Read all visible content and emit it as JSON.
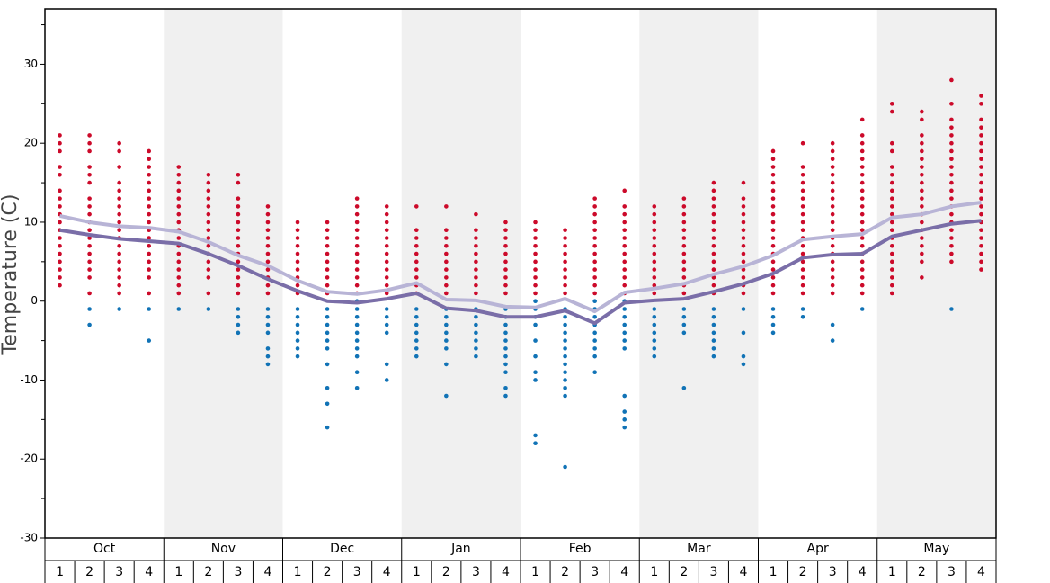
{
  "chart_data": {
    "type": "scatter",
    "y_label": "Temperature (C)",
    "ylim": [
      -30,
      37
    ],
    "yticks": [
      -30,
      -20,
      -10,
      0,
      10,
      20,
      30
    ],
    "minor_yticks": [
      -25,
      -15,
      -5,
      5,
      15,
      25,
      35
    ],
    "warm_color": "#cc0a2a",
    "cold_color": "#1173b6",
    "band_color": "#f0f0f0",
    "months": [
      {
        "name": "Oct",
        "weeks": [
          "1",
          "2",
          "3",
          "4"
        ],
        "dots": [
          [
            21,
            20,
            19,
            17,
            16,
            14,
            13,
            12,
            11,
            10,
            9,
            8,
            7,
            6,
            5,
            4,
            3,
            2
          ],
          [
            21,
            20,
            19,
            17,
            16,
            15,
            13,
            12,
            11,
            10,
            9,
            8,
            7,
            6,
            5,
            4,
            3,
            1,
            -1,
            -3
          ],
          [
            20,
            19,
            17,
            15,
            14,
            13,
            12,
            11,
            10,
            9,
            8,
            7,
            6,
            5,
            4,
            3,
            2,
            1,
            -1
          ],
          [
            19,
            18,
            17,
            16,
            15,
            14,
            13,
            12,
            11,
            10,
            9,
            8,
            7,
            6,
            5,
            4,
            3,
            1,
            -1,
            -5
          ]
        ]
      },
      {
        "name": "Nov",
        "weeks": [
          "1",
          "2",
          "3",
          "4"
        ],
        "dots": [
          [
            17,
            16,
            15,
            14,
            13,
            12,
            11,
            10,
            9,
            8,
            7,
            6,
            5,
            4,
            3,
            2,
            1,
            -1
          ],
          [
            16,
            15,
            14,
            13,
            12,
            11,
            10,
            9,
            8,
            7,
            6,
            5,
            4,
            3,
            1,
            -1
          ],
          [
            16,
            15,
            13,
            12,
            11,
            10,
            9,
            8,
            7,
            6,
            5,
            4,
            3,
            2,
            1,
            -1,
            -2,
            -3,
            -4
          ],
          [
            12,
            11,
            10,
            9,
            8,
            7,
            6,
            5,
            4,
            3,
            2,
            1,
            -1,
            -2,
            -3,
            -4,
            -6,
            -7,
            -8
          ]
        ]
      },
      {
        "name": "Dec",
        "weeks": [
          "1",
          "2",
          "3",
          "4"
        ],
        "dots": [
          [
            10,
            9,
            8,
            7,
            6,
            5,
            4,
            3,
            2,
            1,
            -1,
            -2,
            -3,
            -4,
            -5,
            -6,
            -7
          ],
          [
            10,
            9,
            8,
            7,
            6,
            5,
            4,
            3,
            2,
            1,
            -1,
            -2,
            -3,
            -4,
            -5,
            -6,
            -8,
            -11,
            -13,
            -16
          ],
          [
            13,
            12,
            11,
            10,
            9,
            8,
            7,
            6,
            5,
            4,
            3,
            2,
            1,
            0,
            -1,
            -2,
            -3,
            -4,
            -5,
            -6,
            -7,
            -9,
            -11
          ],
          [
            12,
            11,
            10,
            9,
            8,
            7,
            6,
            5,
            4,
            3,
            2,
            1,
            -1,
            -2,
            -3,
            -4,
            -8,
            -10
          ]
        ]
      },
      {
        "name": "Jan",
        "weeks": [
          "1",
          "2",
          "3",
          "4"
        ],
        "dots": [
          [
            12,
            9,
            8,
            7,
            6,
            5,
            4,
            3,
            2,
            1,
            -1,
            -2,
            -3,
            -4,
            -5,
            -6,
            -7
          ],
          [
            12,
            9,
            8,
            7,
            6,
            5,
            4,
            3,
            2,
            1,
            -1,
            -2,
            -3,
            -4,
            -5,
            -6,
            -8,
            -12
          ],
          [
            11,
            9,
            8,
            7,
            6,
            5,
            4,
            3,
            2,
            1,
            -1,
            -2,
            -3,
            -4,
            -5,
            -6,
            -7
          ],
          [
            10,
            9,
            8,
            7,
            6,
            5,
            4,
            3,
            2,
            1,
            -1,
            -2,
            -3,
            -4,
            -5,
            -6,
            -7,
            -8,
            -9,
            -11,
            -12
          ]
        ]
      },
      {
        "name": "Feb",
        "weeks": [
          "1",
          "2",
          "3",
          "4"
        ],
        "dots": [
          [
            10,
            9,
            8,
            7,
            6,
            5,
            4,
            3,
            2,
            1,
            0,
            -1,
            -2,
            -3,
            -5,
            -7,
            -9,
            -10,
            -17,
            -18
          ],
          [
            9,
            8,
            7,
            6,
            5,
            4,
            3,
            2,
            1,
            -1,
            -2,
            -3,
            -4,
            -5,
            -6,
            -7,
            -8,
            -9,
            -10,
            -11,
            -12,
            -21
          ],
          [
            13,
            12,
            11,
            10,
            9,
            8,
            7,
            6,
            5,
            4,
            3,
            2,
            1,
            0,
            -1,
            -2,
            -3,
            -4,
            -5,
            -6,
            -7,
            -9
          ],
          [
            14,
            12,
            11,
            10,
            9,
            8,
            7,
            6,
            5,
            4,
            3,
            2,
            1,
            0,
            -1,
            -2,
            -3,
            -4,
            -5,
            -6,
            -12,
            -14,
            -15,
            -16
          ]
        ]
      },
      {
        "name": "Mar",
        "weeks": [
          "1",
          "2",
          "3",
          "4"
        ],
        "dots": [
          [
            12,
            11,
            10,
            9,
            8,
            7,
            6,
            5,
            4,
            3,
            2,
            1,
            -1,
            -2,
            -3,
            -4,
            -5,
            -6,
            -7
          ],
          [
            13,
            12,
            11,
            10,
            9,
            8,
            7,
            6,
            5,
            4,
            3,
            2,
            1,
            -1,
            -2,
            -3,
            -4,
            -11
          ],
          [
            15,
            14,
            13,
            12,
            11,
            10,
            9,
            8,
            7,
            6,
            5,
            4,
            3,
            2,
            1,
            -1,
            -2,
            -3,
            -4,
            -5,
            -6,
            -7
          ],
          [
            15,
            13,
            12,
            11,
            10,
            9,
            8,
            7,
            6,
            5,
            4,
            3,
            2,
            1,
            -1,
            -4,
            -7,
            -8
          ]
        ]
      },
      {
        "name": "Apr",
        "weeks": [
          "1",
          "2",
          "3",
          "4"
        ],
        "dots": [
          [
            19,
            18,
            17,
            16,
            15,
            14,
            13,
            12,
            11,
            10,
            9,
            8,
            7,
            6,
            5,
            4,
            3,
            2,
            1,
            -1,
            -2,
            -3,
            -4
          ],
          [
            20,
            17,
            16,
            15,
            14,
            13,
            12,
            11,
            10,
            9,
            8,
            7,
            6,
            5,
            4,
            3,
            2,
            1,
            -1,
            -2
          ],
          [
            20,
            19,
            18,
            17,
            16,
            15,
            14,
            13,
            12,
            11,
            10,
            9,
            8,
            7,
            6,
            5,
            4,
            3,
            2,
            1,
            -3,
            -5
          ],
          [
            23,
            21,
            20,
            19,
            18,
            17,
            16,
            15,
            14,
            13,
            12,
            11,
            10,
            9,
            8,
            7,
            6,
            5,
            4,
            3,
            2,
            1,
            -1
          ]
        ]
      },
      {
        "name": "May",
        "weeks": [
          "1",
          "2",
          "3",
          "4"
        ],
        "dots": [
          [
            25,
            24,
            20,
            19,
            17,
            16,
            15,
            14,
            13,
            12,
            11,
            10,
            9,
            8,
            7,
            6,
            5,
            4,
            3,
            2,
            1
          ],
          [
            24,
            23,
            21,
            20,
            19,
            18,
            17,
            16,
            15,
            14,
            13,
            12,
            11,
            10,
            9,
            8,
            7,
            6,
            5,
            3
          ],
          [
            28,
            25,
            23,
            22,
            21,
            20,
            19,
            18,
            17,
            16,
            15,
            14,
            13,
            12,
            11,
            10,
            9,
            8,
            7,
            6,
            5,
            -1
          ],
          [
            26,
            25,
            23,
            22,
            21,
            20,
            19,
            18,
            17,
            16,
            15,
            14,
            13,
            12,
            11,
            10,
            9,
            8,
            7,
            6,
            5,
            4
          ]
        ]
      }
    ],
    "series": [
      {
        "color": "#b8b4d6",
        "values": [
          10.8,
          10.0,
          9.5,
          9.3,
          8.8,
          7.5,
          5.8,
          4.5,
          2.6,
          1.2,
          0.9,
          1.4,
          2.3,
          0.2,
          0.1,
          -0.7,
          -0.8,
          0.3,
          -1.3,
          1.1,
          1.6,
          2.2,
          3.4,
          4.4,
          5.8,
          7.8,
          8.2,
          8.5,
          10.6,
          11.0,
          12.0,
          12.5
        ]
      },
      {
        "color": "#7a6ea8",
        "values": [
          9.0,
          8.4,
          7.9,
          7.6,
          7.3,
          6.0,
          4.5,
          2.8,
          1.3,
          0.0,
          -0.2,
          0.3,
          1.0,
          -0.9,
          -1.2,
          -2.0,
          -2.0,
          -1.2,
          -2.8,
          -0.2,
          0.1,
          0.3,
          1.2,
          2.2,
          3.5,
          5.5,
          5.9,
          6.0,
          8.2,
          9.0,
          9.8,
          10.2
        ]
      }
    ]
  }
}
